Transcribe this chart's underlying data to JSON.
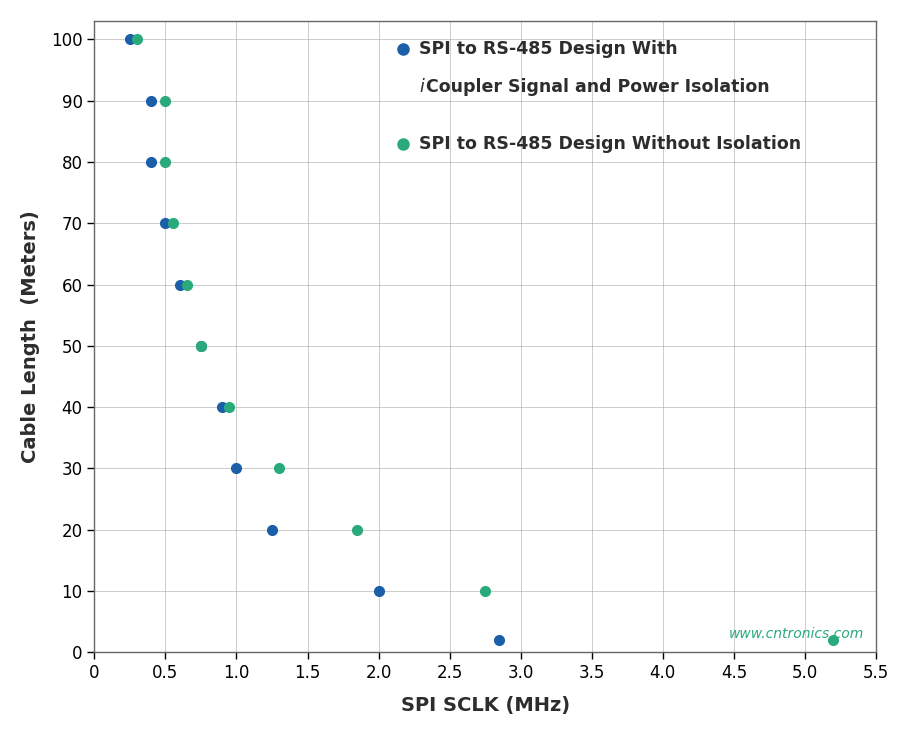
{
  "blue_x": [
    0.25,
    0.4,
    0.4,
    0.5,
    0.6,
    0.75,
    0.9,
    1.0,
    1.25,
    2.0,
    2.85
  ],
  "blue_y": [
    100,
    90,
    80,
    70,
    60,
    50,
    40,
    30,
    20,
    10,
    2
  ],
  "green_x": [
    0.3,
    0.5,
    0.5,
    0.55,
    0.65,
    0.75,
    0.95,
    1.3,
    1.85,
    2.75,
    5.2
  ],
  "green_y": [
    100,
    90,
    80,
    70,
    60,
    50,
    40,
    30,
    20,
    10,
    2
  ],
  "blue_color": "#1a5fa8",
  "green_color": "#2aaa7a",
  "xlabel": "SPI SCLK (MHz)",
  "ylabel": "Cable Length  (Meters)",
  "xlim": [
    0,
    5.5
  ],
  "ylim": [
    0,
    103
  ],
  "xticks": [
    0.0,
    0.5,
    1.0,
    1.5,
    2.0,
    2.5,
    3.0,
    3.5,
    4.0,
    4.5,
    5.0,
    5.5
  ],
  "yticks": [
    0,
    10,
    20,
    30,
    40,
    50,
    60,
    70,
    80,
    90,
    100
  ],
  "watermark": "www.cntronics.com",
  "marker_size": 7,
  "bg_color": "#ffffff",
  "grid_color": "#aaaaaa",
  "axis_label_fontsize": 14,
  "tick_fontsize": 12,
  "legend_text_color": "#2d2d2d",
  "legend_fontsize": 12.5
}
